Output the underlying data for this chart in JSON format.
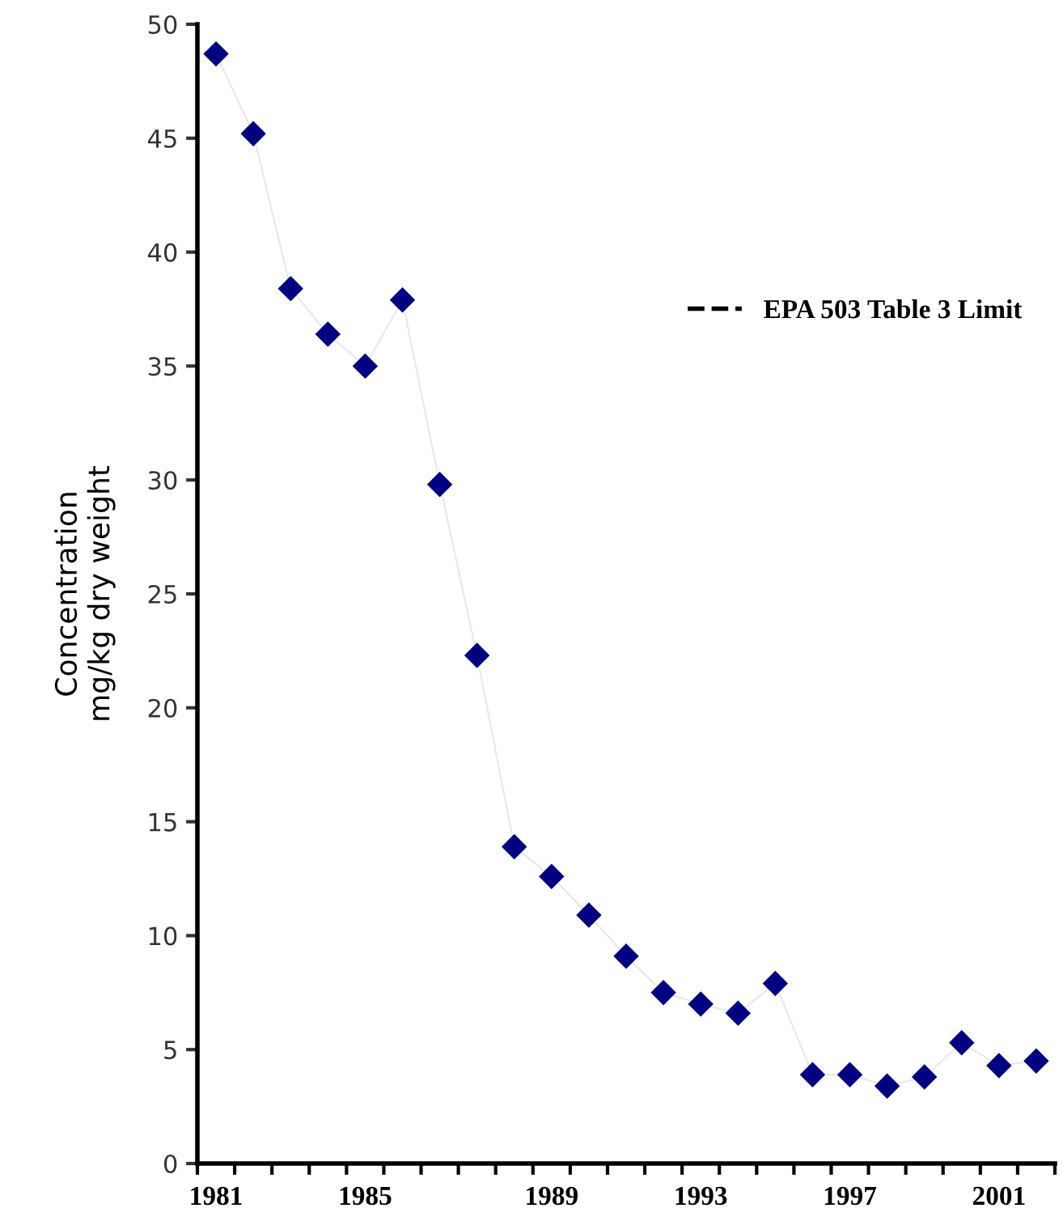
{
  "chart_data": {
    "type": "line",
    "ylabel": "Concentration\nmg/kg dry weight",
    "categories": [
      "1981",
      null,
      null,
      null,
      "1985",
      null,
      null,
      null,
      null,
      "1989",
      null,
      null,
      null,
      "1993",
      null,
      null,
      null,
      "1997",
      null,
      null,
      null,
      "2001",
      null
    ],
    "series": [
      {
        "color": "#000080",
        "marker": "diamond",
        "values": [
          48.7,
          45.2,
          38.4,
          36.4,
          35.0,
          37.9,
          29.8,
          22.3,
          13.9,
          12.6,
          10.9,
          9.1,
          7.5,
          7.0,
          6.6,
          7.9,
          3.9,
          3.9,
          3.4,
          3.8,
          5.3,
          4.3,
          4.5
        ]
      },
      {
        "name": "EPA 503 Table 3 Limit",
        "color": "#000000",
        "line_style": "dashed",
        "marker": "none",
        "values": [
          null,
          null,
          null,
          null,
          null,
          null,
          null,
          null,
          null,
          null,
          null,
          null,
          null,
          null,
          null,
          null,
          null,
          null,
          null,
          null,
          null,
          null,
          null
        ]
      }
    ],
    "ylim": [
      0,
      50
    ],
    "yticks": [
      0,
      5,
      10,
      15,
      20,
      25,
      30,
      35,
      40,
      45,
      50
    ],
    "grid": false,
    "legend": "top right"
  }
}
